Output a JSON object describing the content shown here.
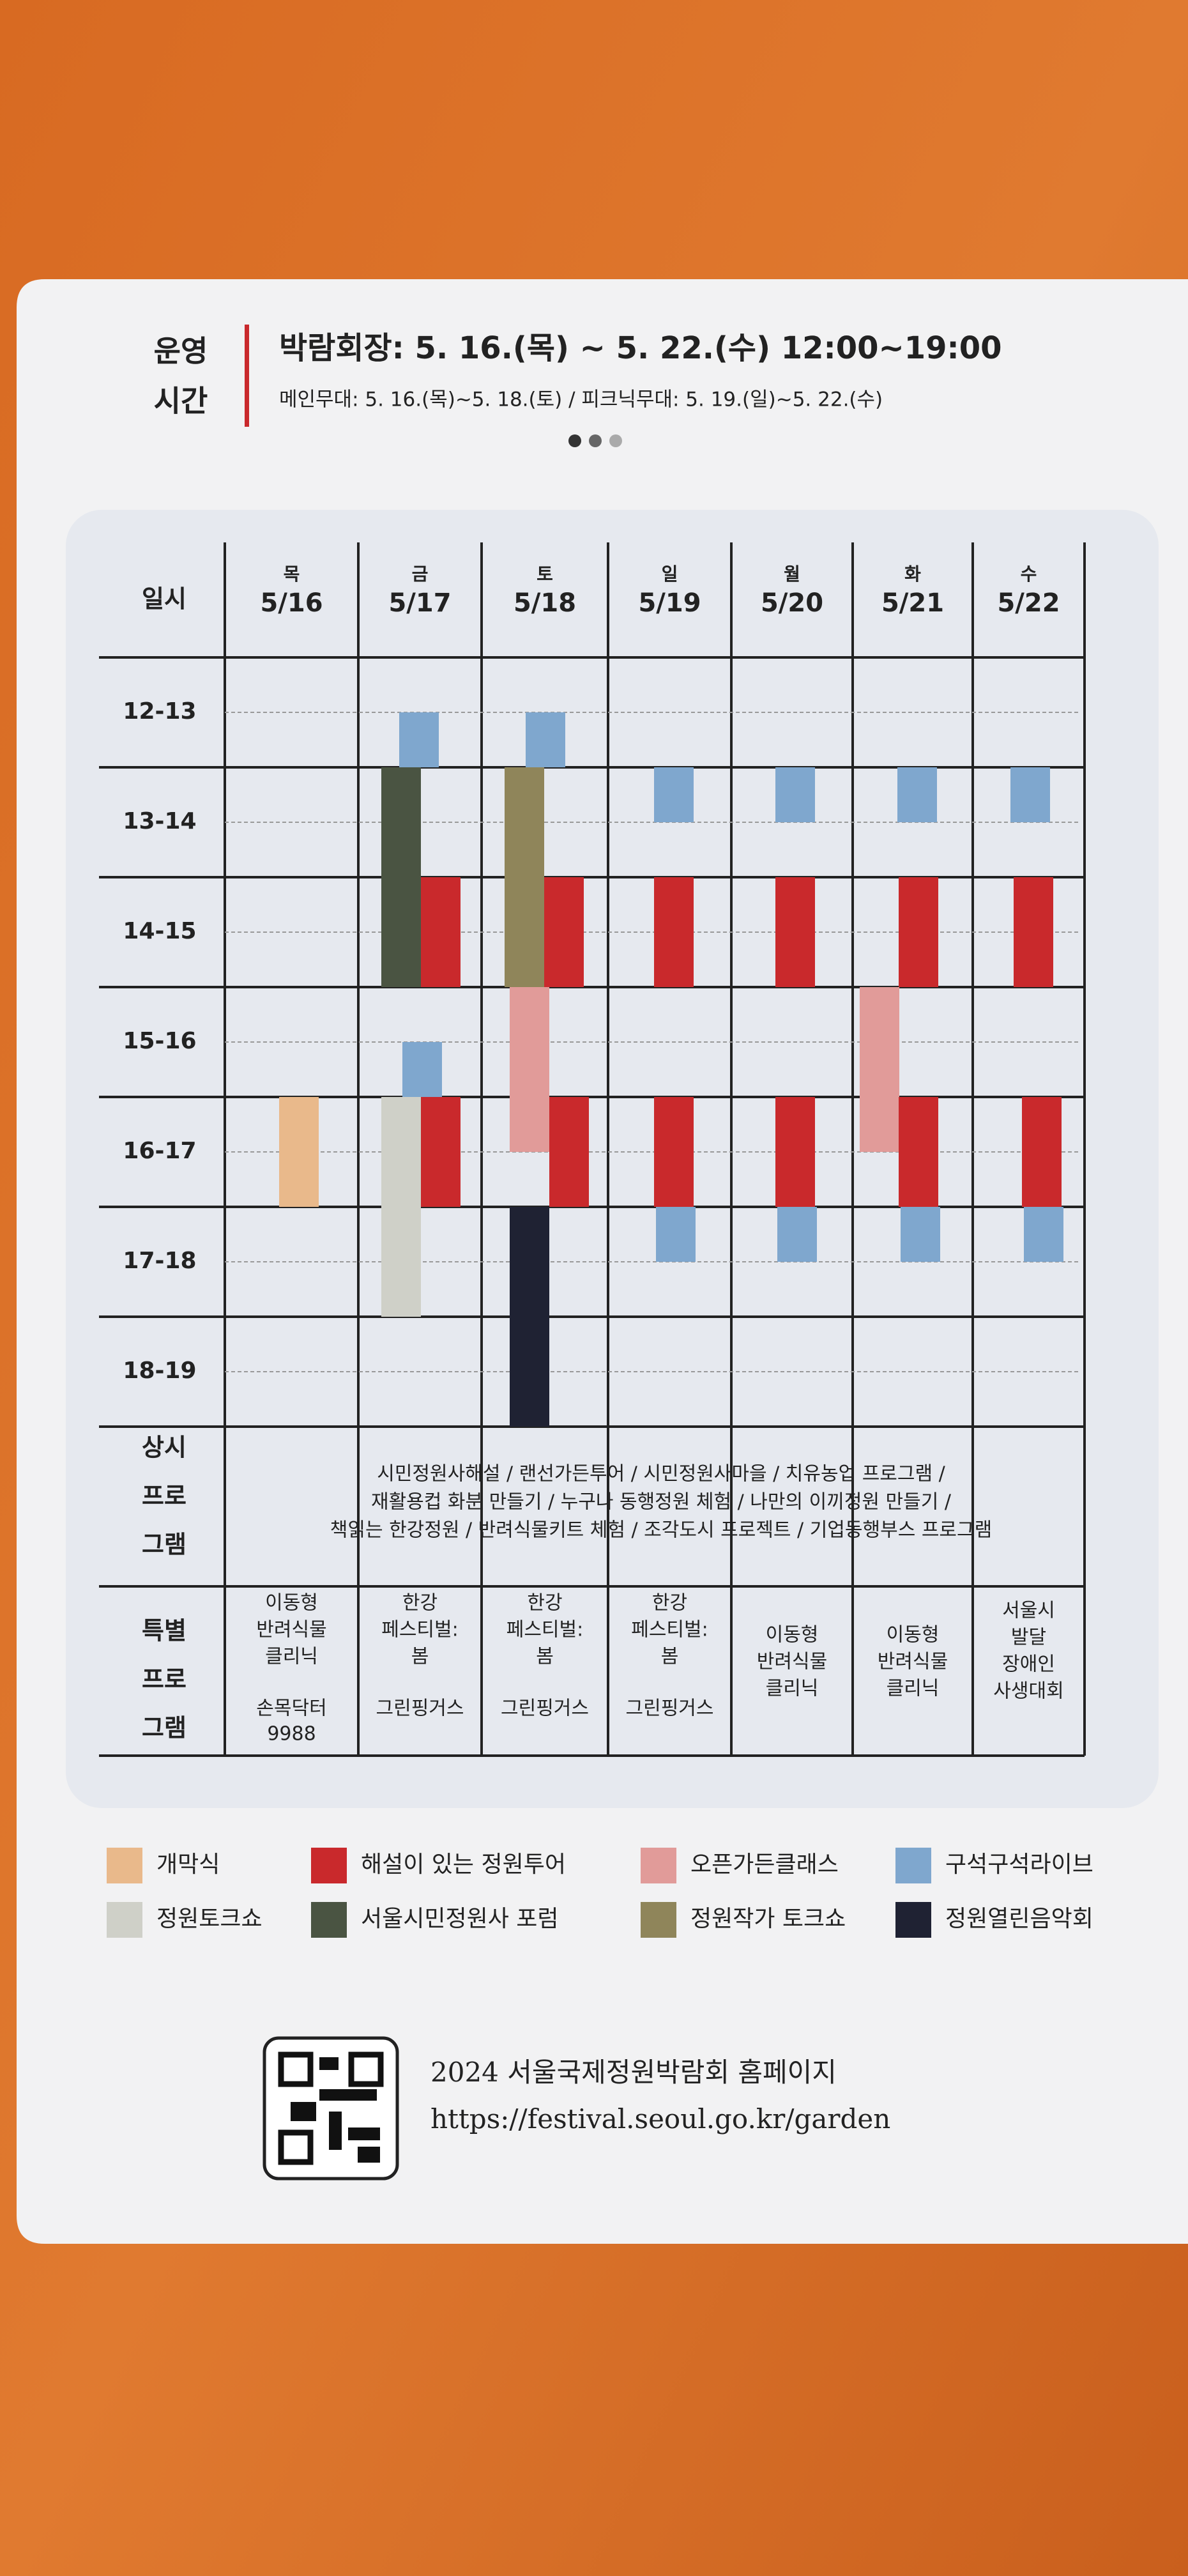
{
  "header": {
    "label": [
      "운영",
      "시간"
    ],
    "main": "박람회장: 5. 16.(목) ~ 5. 22.(수) 12:00~19:00",
    "sub": "메인무대: 5. 16.(목)~5. 18.(토)  / 피크닉무대: 5. 19.(일)~5. 22.(수)"
  },
  "table": {
    "corner": "일시",
    "days": [
      {
        "weekday": "목",
        "date": "5/16"
      },
      {
        "weekday": "금",
        "date": "5/17"
      },
      {
        "weekday": "토",
        "date": "5/18"
      },
      {
        "weekday": "일",
        "date": "5/19"
      },
      {
        "weekday": "월",
        "date": "5/20"
      },
      {
        "weekday": "화",
        "date": "5/21"
      },
      {
        "weekday": "수",
        "date": "5/22"
      }
    ],
    "times": [
      "12-13",
      "13-14",
      "14-15",
      "15-16",
      "16-17",
      "17-18",
      "18-19"
    ],
    "permanent": {
      "label": [
        "상시",
        "프로",
        "그램"
      ],
      "lines": [
        "시민정원사해설 / 랜선가든투어 / 시민정원사마을 / 치유농업 프로그램 /",
        "재활용컵 화분 만들기 / 누구나 동행정원 체험 / 나만의 이끼정원 만들기 /",
        "책읽는 한강정원 / 반려식물키트 체험 / 조각도시 프로젝트 / 기업동행부스 프로그램"
      ]
    },
    "special": {
      "label": [
        "특별",
        "프로",
        "그램"
      ],
      "cells": [
        {
          "name": [
            "이동형",
            "반려식물",
            "클리닉"
          ],
          "sub": [
            "손목닥터",
            "9988"
          ]
        },
        {
          "name": [
            "한강",
            "페스티벌:",
            "봄"
          ],
          "sub": [
            "그린핑거스"
          ]
        },
        {
          "name": [
            "한강",
            "페스티벌:",
            "봄"
          ],
          "sub": [
            "그린핑거스"
          ]
        },
        {
          "name": [
            "한강",
            "페스티벌:",
            "봄"
          ],
          "sub": [
            "그린핑거스"
          ]
        },
        {
          "name": [
            "이동형",
            "반려식물",
            "클리닉"
          ]
        },
        {
          "name": [
            "이동형",
            "반려식물",
            "클리닉"
          ]
        },
        {
          "name": [
            "서울시",
            "발달",
            "장애인",
            "사생대회"
          ]
        }
      ]
    }
  },
  "legend": [
    {
      "label": "개막식",
      "color": "#e9b98b"
    },
    {
      "label": "해설이 있는 정원투어",
      "color": "#c9292c"
    },
    {
      "label": "오픈가든클래스",
      "color": "#e19b99"
    },
    {
      "label": "구석구석라이브",
      "color": "#7fa7ce"
    },
    {
      "label": "정원토크쇼",
      "color": "#cfd0c8"
    },
    {
      "label": "서울시민정원사 포럼",
      "color": "#4a5442"
    },
    {
      "label": "정원작가 토크쇼",
      "color": "#8f855a"
    },
    {
      "label": "정원열린음악회",
      "color": "#1f2233"
    }
  ],
  "footer": {
    "title": "2024 서울국제정원박람회 홈페이지",
    "url": "https://festival.seoul.go.kr/garden"
  }
}
